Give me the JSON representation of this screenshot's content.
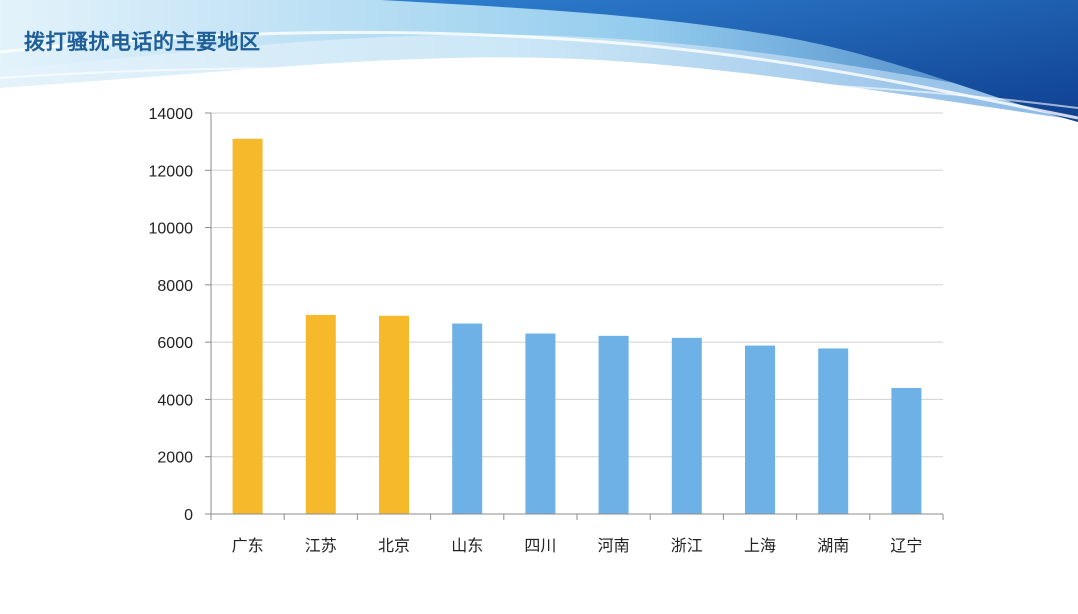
{
  "slide": {
    "title": "拨打骚扰电话的主要地区"
  },
  "colors": {
    "highlight": "#F6B92B",
    "normal": "#6DB1E6",
    "grid": "#D0D0D0",
    "axis": "#8C8C8C",
    "title": "#1F5F99"
  },
  "chart_data": {
    "type": "bar",
    "title": "",
    "xlabel": "",
    "ylabel": "",
    "categories": [
      "广东",
      "江苏",
      "北京",
      "山东",
      "四川",
      "河南",
      "浙江",
      "上海",
      "湖南",
      "辽宁"
    ],
    "values": [
      13100,
      6950,
      6920,
      6650,
      6300,
      6220,
      6150,
      5880,
      5780,
      4400
    ],
    "highlighted": [
      true,
      true,
      true,
      false,
      false,
      false,
      false,
      false,
      false,
      false
    ],
    "ylim": [
      0,
      14000
    ],
    "yticks": [
      0,
      2000,
      4000,
      6000,
      8000,
      10000,
      12000,
      14000
    ],
    "grid": true,
    "legend": "none"
  }
}
